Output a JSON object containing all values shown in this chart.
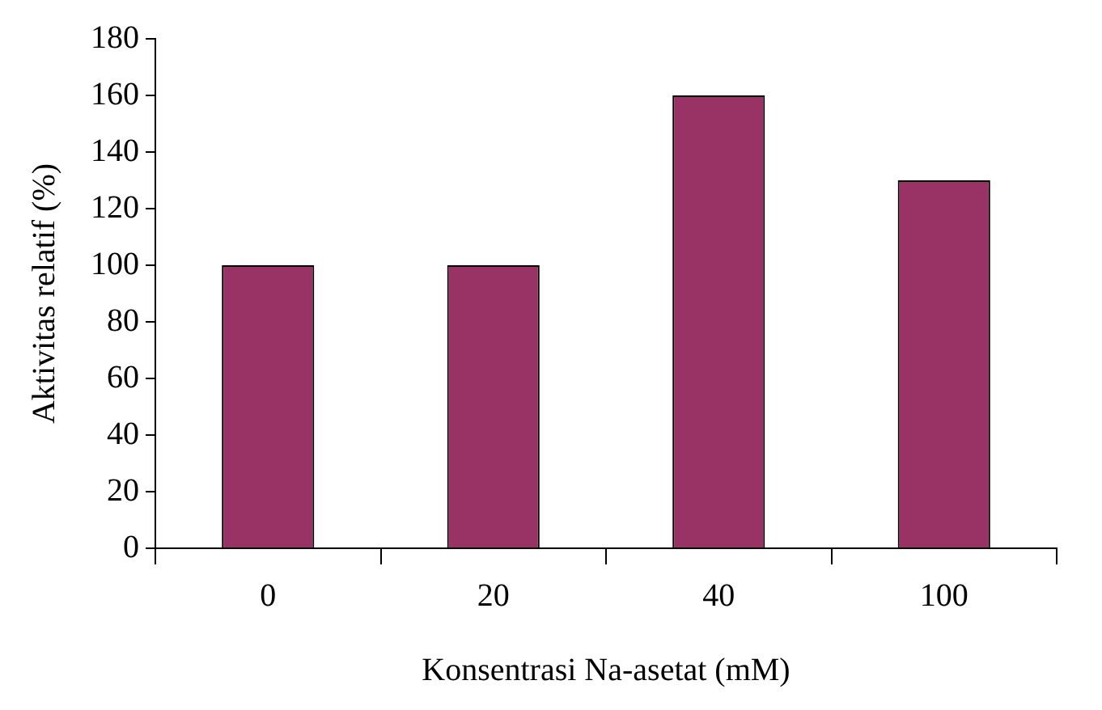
{
  "chart_data": {
    "type": "bar",
    "xlabel": "Konsentrasi Na-asetat (mM)",
    "ylabel": "Aktivitas relatif (%)",
    "categories": [
      "0",
      "20",
      "40",
      "100"
    ],
    "values": [
      100,
      100,
      160,
      130
    ],
    "color": "#993366",
    "ylim": [
      0,
      180
    ],
    "yticks": [
      0,
      20,
      40,
      60,
      80,
      100,
      120,
      140,
      160,
      180
    ],
    "grid": false,
    "legend": false
  }
}
